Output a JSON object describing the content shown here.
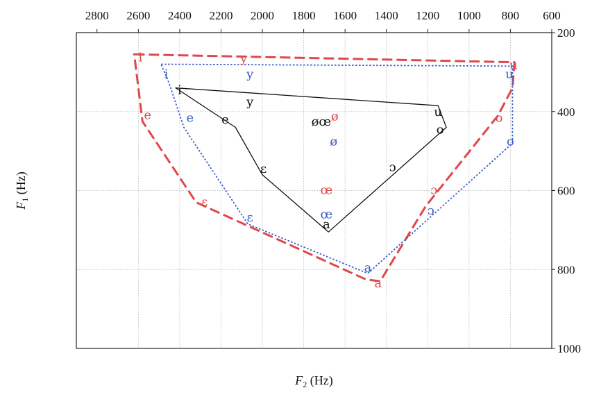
{
  "chart_data": {
    "type": "line",
    "xlabel": "F",
    "xlabel_sub": "2",
    "xlabel_unit": " (Hz)",
    "ylabel": "F",
    "ylabel_sub": "1",
    "ylabel_unit": " (Hz)",
    "x_axis_position": "top",
    "x_reversed": true,
    "y_axis_position": "right",
    "y_reversed": true,
    "xlim": [
      2900,
      600
    ],
    "ylim": [
      200,
      1000
    ],
    "x_ticks": [
      2800,
      2600,
      2400,
      2200,
      2000,
      1800,
      1600,
      1400,
      1200,
      1000,
      800,
      600
    ],
    "y_ticks": [
      200,
      400,
      600,
      800,
      1000
    ],
    "grid": true,
    "x_grid": [
      2600,
      2400,
      2200,
      2000,
      1800,
      1600,
      1400,
      1200,
      1000,
      800
    ],
    "y_grid": [
      400,
      600,
      800
    ],
    "series": [
      {
        "color": "#e0464a",
        "style": "long-dash",
        "points": [
          {
            "x": 2620,
            "y": 255
          },
          {
            "x": 780,
            "y": 275
          },
          {
            "x": 790,
            "y": 340
          },
          {
            "x": 860,
            "y": 410
          },
          {
            "x": 1210,
            "y": 640
          },
          {
            "x": 1430,
            "y": 830
          },
          {
            "x": 1500,
            "y": 825
          },
          {
            "x": 2320,
            "y": 630
          },
          {
            "x": 2580,
            "y": 425
          }
        ],
        "labels": [
          {
            "text": "i",
            "x": 2590,
            "y": 262
          },
          {
            "text": "y",
            "x": 2090,
            "y": 265
          },
          {
            "text": "u",
            "x": 785,
            "y": 282
          },
          {
            "text": "e",
            "x": 2555,
            "y": 408
          },
          {
            "text": "o",
            "x": 855,
            "y": 415
          },
          {
            "text": "ø",
            "x": 1650,
            "y": 412
          },
          {
            "text": "ɛ",
            "x": 2280,
            "y": 628
          },
          {
            "text": "ɔ",
            "x": 1170,
            "y": 598
          },
          {
            "text": "œ",
            "x": 1690,
            "y": 598
          },
          {
            "text": "a",
            "x": 1440,
            "y": 835
          }
        ]
      },
      {
        "color": "#3a5fc8",
        "style": "dotted",
        "points": [
          {
            "x": 2490,
            "y": 280
          },
          {
            "x": 790,
            "y": 285
          },
          {
            "x": 790,
            "y": 480
          },
          {
            "x": 1490,
            "y": 810
          },
          {
            "x": 2070,
            "y": 685
          },
          {
            "x": 2380,
            "y": 440
          },
          {
            "x": 2450,
            "y": 330
          }
        ],
        "labels": [
          {
            "text": "i",
            "x": 2465,
            "y": 305
          },
          {
            "text": "y",
            "x": 2060,
            "y": 305
          },
          {
            "text": "u",
            "x": 805,
            "y": 305
          },
          {
            "text": "e",
            "x": 2350,
            "y": 415
          },
          {
            "text": "o",
            "x": 800,
            "y": 475
          },
          {
            "text": "ø",
            "x": 1655,
            "y": 475
          },
          {
            "text": "ɛ",
            "x": 2060,
            "y": 668
          },
          {
            "text": "ɔ",
            "x": 1185,
            "y": 650
          },
          {
            "text": "œ",
            "x": 1690,
            "y": 660
          },
          {
            "text": "a",
            "x": 1490,
            "y": 795
          }
        ]
      },
      {
        "color": "#111111",
        "style": "solid",
        "points": [
          {
            "x": 2420,
            "y": 340
          },
          {
            "x": 1150,
            "y": 385
          },
          {
            "x": 1110,
            "y": 440
          },
          {
            "x": 1680,
            "y": 705
          },
          {
            "x": 2000,
            "y": 560
          },
          {
            "x": 2130,
            "y": 440
          }
        ],
        "labels": [
          {
            "text": "i",
            "x": 2400,
            "y": 345
          },
          {
            "text": "y",
            "x": 2060,
            "y": 375
          },
          {
            "text": "u",
            "x": 1150,
            "y": 400
          },
          {
            "text": "e",
            "x": 2180,
            "y": 420
          },
          {
            "text": "o",
            "x": 1140,
            "y": 445
          },
          {
            "text": "øœ",
            "x": 1715,
            "y": 425
          },
          {
            "text": "ɛ",
            "x": 1995,
            "y": 545
          },
          {
            "text": "ɔ",
            "x": 1370,
            "y": 540
          },
          {
            "text": "a",
            "x": 1690,
            "y": 685
          }
        ]
      }
    ]
  }
}
